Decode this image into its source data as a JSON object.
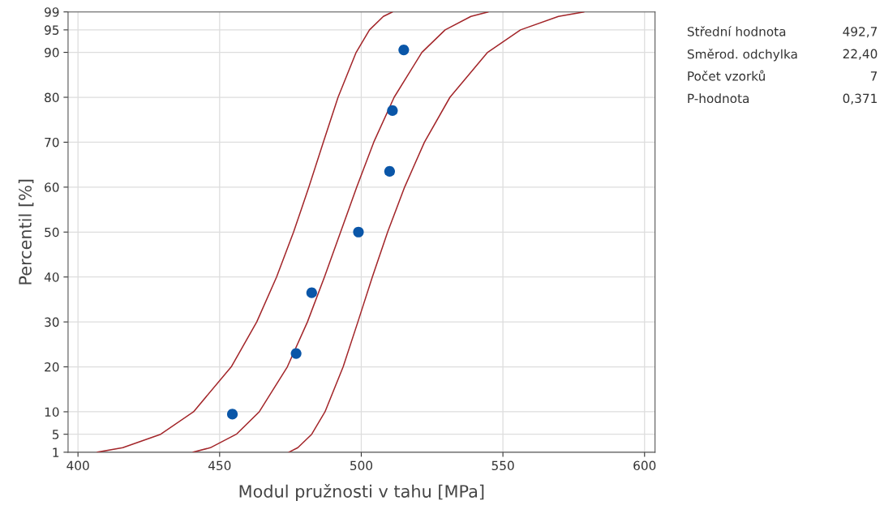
{
  "chart_data": {
    "type": "scatter",
    "xlabel": "Modul pružnosti v tahu [MPa]",
    "ylabel": "Percentil [%]",
    "xlim": [
      396.5,
      603.7
    ],
    "xticks": [
      400,
      450,
      500,
      550,
      600
    ],
    "ylim": [
      1,
      99
    ],
    "yticks": [
      1,
      5,
      10,
      20,
      30,
      40,
      50,
      60,
      70,
      80,
      90,
      95,
      99
    ],
    "grid": true,
    "legend": false,
    "series": [
      {
        "marker": "circle",
        "color": "#0a56a8",
        "x": [
          454.5,
          477,
          482.5,
          499,
          510,
          511,
          515
        ],
        "values": [
          9.46,
          22.97,
          36.49,
          50,
          63.51,
          77.03,
          90.54
        ]
      },
      {
        "type": "line",
        "marker": "none",
        "color": "#a3262a",
        "x": [
          440.6,
          446.7,
          455.9,
          464.0,
          473.9,
          481.0,
          487.0,
          492.7,
          498.4,
          504.4,
          511.6,
          521.4,
          529.6,
          538.7,
          544.8
        ],
        "values": [
          1,
          2,
          5,
          10,
          20,
          30,
          40,
          50,
          60,
          70,
          80,
          90,
          95,
          98,
          99
        ]
      },
      {
        "type": "line",
        "marker": "none",
        "color": "#a3262a",
        "x": [
          406.8,
          415.8,
          429.2,
          440.8,
          454.1,
          463.1,
          470.1,
          476.1,
          481.5,
          486.6,
          491.8,
          498.2,
          502.9,
          507.8,
          511.0
        ],
        "values": [
          1,
          2,
          5,
          10,
          20,
          30,
          40,
          50,
          60,
          70,
          80,
          90,
          95,
          98,
          99
        ]
      },
      {
        "type": "line",
        "marker": "none",
        "color": "#a3262a",
        "x": [
          474.4,
          477.6,
          482.5,
          487.2,
          493.6,
          498.8,
          503.9,
          509.3,
          515.3,
          522.3,
          531.3,
          544.6,
          556.2,
          569.6,
          578.6
        ],
        "values": [
          1,
          2,
          5,
          10,
          20,
          30,
          40,
          50,
          60,
          70,
          80,
          90,
          95,
          98,
          99
        ]
      }
    ],
    "annotations": [
      "Střední hodnota",
      "492,7",
      "Směrod. odchylka",
      "22,40",
      "Počet vzorků",
      "7",
      "P-hodnota",
      "0,371"
    ]
  }
}
